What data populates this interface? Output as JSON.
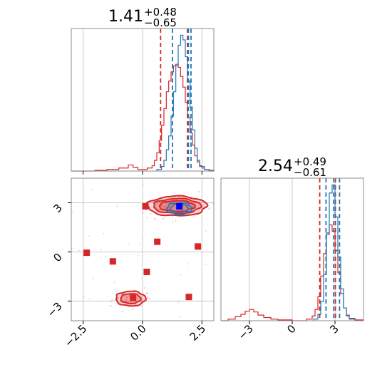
{
  "colors": {
    "red": "#d62728",
    "blue": "#1f77b4",
    "grid": "#c8c8c8",
    "axis": "#8c8c8c"
  },
  "chart_data": [
    {
      "type": "histogram",
      "panel": "marginal-x",
      "title": {
        "value": "1.41",
        "plus": "+0.48",
        "minus": "−0.65"
      },
      "xlim": [
        -3.0,
        3.0
      ],
      "grid": true,
      "series": [
        {
          "color": "red",
          "bin_edges": [
            -3.0,
            -2.5,
            -2.0,
            -1.5,
            -1.0,
            -0.6,
            -0.4,
            -0.2,
            0.0,
            0.2,
            0.4,
            0.5,
            0.6,
            0.7,
            0.8,
            0.9,
            1.0,
            1.1,
            1.2,
            1.3,
            1.4,
            1.5,
            1.6,
            1.7,
            1.8,
            1.9,
            2.0,
            2.1,
            2.2,
            2.3,
            2.4,
            2.5,
            2.6,
            2.8,
            3.0
          ],
          "counts": [
            0,
            0,
            1,
            2,
            4,
            8,
            5,
            2,
            2,
            4,
            7,
            14,
            24,
            40,
            60,
            82,
            104,
            118,
            130,
            138,
            140,
            136,
            124,
            110,
            90,
            70,
            50,
            34,
            20,
            12,
            7,
            4,
            2,
            1
          ],
          "quantile_lines": [
            0.76,
            1.89
          ]
        },
        {
          "color": "blue",
          "bin_edges": [
            0.6,
            0.8,
            0.9,
            1.0,
            1.1,
            1.2,
            1.3,
            1.4,
            1.5,
            1.6,
            1.7,
            1.8,
            1.9,
            2.0,
            2.1,
            2.2,
            2.3,
            2.4,
            2.6,
            2.8,
            3.0
          ],
          "counts": [
            2,
            6,
            14,
            28,
            46,
            72,
            104,
            138,
            165,
            178,
            172,
            150,
            118,
            84,
            54,
            30,
            14,
            6,
            2,
            0
          ],
          "quantile_lines": [
            1.26,
            1.93,
            2.04
          ]
        }
      ]
    },
    {
      "type": "histogram",
      "panel": "marginal-y",
      "title": {
        "value": "2.54",
        "plus": "+0.49",
        "minus": "−0.61"
      },
      "xlim": [
        -5.0,
        5.0
      ],
      "grid": true,
      "series": [
        {
          "color": "red",
          "bin_edges": [
            -5.0,
            -4.5,
            -4.0,
            -3.6,
            -3.3,
            -3.0,
            -2.7,
            -2.4,
            -2.0,
            -1.5,
            -1.0,
            0.0,
            1.0,
            1.4,
            1.6,
            1.8,
            2.0,
            2.2,
            2.4,
            2.6,
            2.8,
            3.0,
            3.2,
            3.4,
            3.6,
            3.8,
            4.0,
            4.4,
            5.0
          ],
          "counts": [
            0,
            2,
            5,
            8,
            12,
            14,
            11,
            7,
            4,
            2,
            1,
            0,
            2,
            6,
            14,
            30,
            56,
            84,
            108,
            120,
            112,
            88,
            60,
            34,
            16,
            7,
            3,
            1
          ],
          "quantile_lines": [
            1.93,
            3.03
          ]
        },
        {
          "color": "blue",
          "bin_edges": [
            1.5,
            1.8,
            2.0,
            2.2,
            2.4,
            2.6,
            2.8,
            3.0,
            3.2,
            3.4,
            3.6,
            3.8,
            4.0,
            4.4
          ],
          "counts": [
            2,
            8,
            24,
            58,
            110,
            160,
            170,
            130,
            80,
            40,
            16,
            6,
            2
          ],
          "quantile_lines": [
            2.37,
            2.91,
            3.32
          ]
        }
      ]
    },
    {
      "type": "scatter",
      "panel": "joint",
      "xlim": [
        -3.0,
        3.0
      ],
      "ylim": [
        -4.2,
        4.5
      ],
      "grid": true,
      "xticks": [
        "−2.5",
        "0.0",
        "2.5"
      ],
      "yticks": [
        "−3",
        "0",
        "3"
      ],
      "xtick_values": [
        -2.5,
        0.0,
        2.5
      ],
      "ytick_values": [
        -3,
        0,
        3
      ],
      "marker_points_red": [
        [
          0.12,
          2.78
        ],
        [
          -2.35,
          -0.05
        ],
        [
          -1.25,
          -0.58
        ],
        [
          0.62,
          0.62
        ],
        [
          0.18,
          -1.22
        ],
        [
          2.33,
          0.33
        ],
        [
          -0.4,
          -2.8
        ],
        [
          1.95,
          -2.75
        ]
      ],
      "marker_points_blue": [
        [
          1.55,
          2.78
        ]
      ],
      "contours": [
        {
          "color": "red",
          "center": [
            1.45,
            2.8
          ],
          "radii": [
            [
              2.5,
              1.2
            ],
            [
              2.0,
              0.9
            ],
            [
              1.5,
              0.65
            ]
          ]
        },
        {
          "color": "red",
          "center": [
            -0.5,
            -2.85
          ],
          "radii": [
            [
              1.25,
              0.9
            ],
            [
              0.85,
              0.6
            ]
          ]
        },
        {
          "color": "blue",
          "center": [
            1.55,
            2.65
          ],
          "radii": [
            [
              1.05,
              0.7
            ],
            [
              0.75,
              0.5
            ]
          ]
        }
      ]
    }
  ],
  "marginal_y_xticks": [
    "−3",
    "0",
    "3"
  ],
  "marginal_y_xtick_values": [
    -3,
    0,
    3
  ]
}
